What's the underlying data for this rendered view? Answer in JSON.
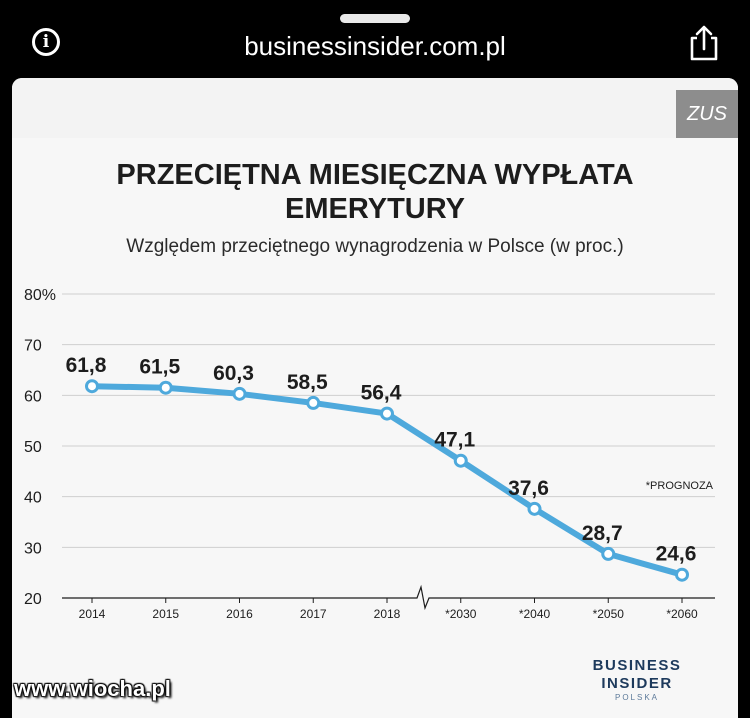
{
  "browser": {
    "url": "businessinsider.com.pl",
    "info_icon": "info-icon",
    "share_icon": "share-icon"
  },
  "source_badge": "ZUS",
  "chart_data": {
    "type": "line",
    "title": "PRZECIĘTNA MIESIĘCZNA WYPŁATA EMERYTURY",
    "title_lines": [
      "PRZECIĘTNA MIESIĘCZNA WYPŁATA",
      "EMERYTURY"
    ],
    "subtitle": "Względem przeciętnego wynagrodzenia w Polsce (w proc.)",
    "categories": [
      "2014",
      "2015",
      "2016",
      "2017",
      "2018",
      "*2030",
      "*2040",
      "*2050",
      "*2060"
    ],
    "values": [
      61.8,
      61.5,
      60.3,
      58.5,
      56.4,
      47.1,
      37.6,
      28.7,
      24.6
    ],
    "data_labels": [
      "61,8",
      "61,5",
      "60,3",
      "58,5",
      "56,4",
      "47,1",
      "37,6",
      "28,7",
      "24,6"
    ],
    "y_ticks": [
      "80%",
      "70",
      "60",
      "50",
      "40",
      "30",
      "20"
    ],
    "y_tick_values": [
      80,
      70,
      60,
      50,
      40,
      30,
      20
    ],
    "ylim": [
      20,
      80
    ],
    "axis_break": true,
    "grid": true,
    "annotation": "*PROGNOZA",
    "colors": {
      "line": "#4ea9dc",
      "grid": "#cfcfcf",
      "text": "#1d1d1d"
    }
  },
  "brand": {
    "line1": "BUSINESS",
    "line2": "INSIDER",
    "line3": "POLSKA",
    "color": "#1d3a5c"
  },
  "watermark": "www.wiocha.pl"
}
